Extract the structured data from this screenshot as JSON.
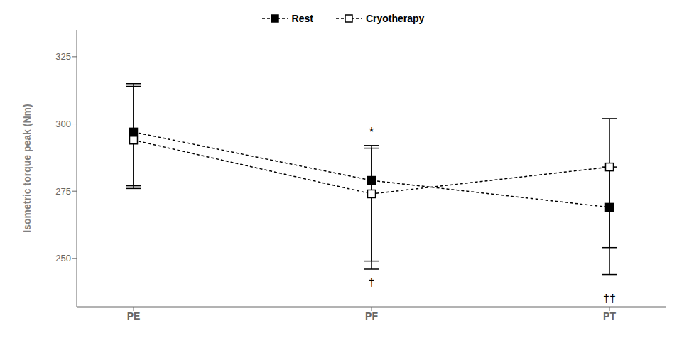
{
  "chart_data": {
    "type": "line",
    "categories": [
      "PE",
      "PF",
      "PT"
    ],
    "series": [
      {
        "name": "Rest",
        "color": "#000000",
        "marker": "square",
        "line_style": "dashed",
        "values": [
          297,
          279,
          269
        ],
        "error_upper": [
          18,
          12,
          15
        ],
        "error_lower": [
          20,
          30,
          25
        ]
      },
      {
        "name": "Cryotherapy",
        "color": "#000000",
        "marker": "open-square",
        "line_style": "dashed",
        "values": [
          294,
          274,
          284
        ],
        "error_upper": [
          20,
          18,
          18
        ],
        "error_lower": [
          18,
          28,
          30
        ]
      }
    ],
    "ylabel": "Isometric torque peak (Nm)",
    "ylim": [
      232,
      335
    ],
    "yticks": [
      250,
      275,
      300,
      325
    ],
    "annotations": [
      {
        "text": "*",
        "x": "PF",
        "y": 294,
        "position": "above"
      },
      {
        "text": "†",
        "x": "PF",
        "y": 244,
        "position": "below"
      },
      {
        "text": "††",
        "x": "PT",
        "y": 238,
        "position": "below"
      }
    ],
    "legend": "top",
    "grid": false
  }
}
